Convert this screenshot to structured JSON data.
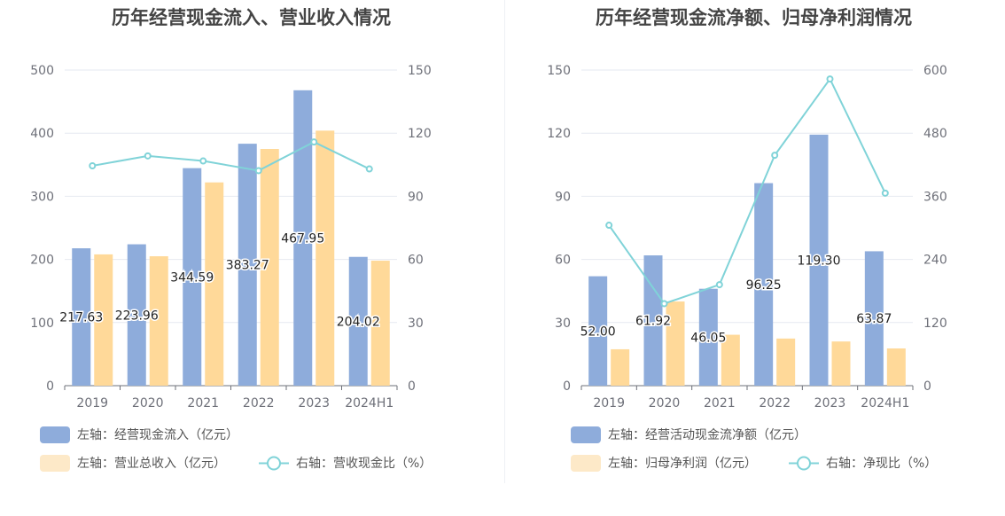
{
  "colors": {
    "bar1": "#8eacdb",
    "bar2": "#ffd999",
    "line": "#80d3d8",
    "legend_bar2": "#fde9c8",
    "grid": "#e6e9f0",
    "axis": "#6e7079"
  },
  "chart_data": [
    {
      "type": "bar",
      "title": "历年经营现金流入、营业收入情况",
      "categories": [
        "2019",
        "2020",
        "2021",
        "2022",
        "2023",
        "2024H1"
      ],
      "left_axis": {
        "ticks": [
          "0",
          "100",
          "200",
          "300",
          "400",
          "500"
        ],
        "ylim": [
          0,
          500
        ]
      },
      "right_axis": {
        "ticks": [
          "0",
          "30",
          "60",
          "90",
          "120",
          "150"
        ],
        "ylim": [
          0,
          150
        ]
      },
      "grid": true,
      "series": [
        {
          "name": "左轴：经营现金流入（亿元）",
          "kind": "bar",
          "axis": "left",
          "values": [
            217.63,
            223.96,
            344.59,
            383.27,
            467.95,
            204.02
          ],
          "labels": [
            "217.63",
            "223.96",
            "344.59",
            "383.27",
            "467.95",
            "204.02"
          ]
        },
        {
          "name": "左轴：营业总收入（亿元）",
          "kind": "bar",
          "axis": "left",
          "values": [
            208,
            205,
            322,
            375,
            404,
            198
          ]
        },
        {
          "name": "右轴：营收现金比（%）",
          "kind": "line",
          "axis": "right",
          "values": [
            104.5,
            109.2,
            106.8,
            102.2,
            115.8,
            103.0
          ]
        }
      ],
      "legend_position": "bottom-left"
    },
    {
      "type": "bar",
      "title": "历年经营现金流净额、归母净利润情况",
      "categories": [
        "2019",
        "2020",
        "2021",
        "2022",
        "2023",
        "2024H1"
      ],
      "left_axis": {
        "ticks": [
          "0",
          "30",
          "60",
          "90",
          "120",
          "150"
        ],
        "ylim": [
          0,
          150
        ]
      },
      "right_axis": {
        "ticks": [
          "0",
          "120",
          "240",
          "360",
          "480",
          "600"
        ],
        "ylim": [
          0,
          600
        ]
      },
      "grid": true,
      "series": [
        {
          "name": "左轴：经营活动现金流净额（亿元）",
          "kind": "bar",
          "axis": "left",
          "values": [
            52.0,
            61.92,
            46.05,
            96.25,
            119.3,
            63.87
          ],
          "labels": [
            "52.00",
            "61.92",
            "46.05",
            "96.25",
            "119.30",
            "63.87"
          ]
        },
        {
          "name": "左轴：归母净利润（亿元）",
          "kind": "bar",
          "axis": "left",
          "values": [
            17.3,
            40.0,
            24.2,
            22.4,
            21.0,
            17.7
          ]
        },
        {
          "name": "右轴：净现比（%）",
          "kind": "line",
          "axis": "right",
          "values": [
            305,
            156,
            192,
            438,
            583,
            366
          ]
        }
      ],
      "legend_position": "bottom-left"
    }
  ]
}
